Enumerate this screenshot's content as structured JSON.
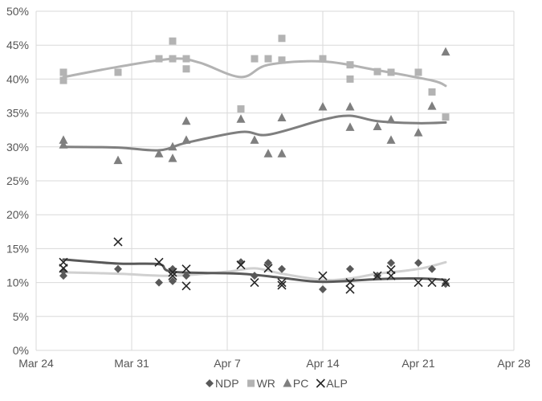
{
  "chart_data": {
    "type": "scatter",
    "x_axis": {
      "min": "2016-03-24",
      "max": "2016-04-28",
      "ticks": [
        "Mar 24",
        "Mar 31",
        "Apr 7",
        "Apr 14",
        "Apr 21",
        "Apr 28"
      ]
    },
    "y_axis": {
      "min": 0,
      "max": 50,
      "ticks": [
        "0%",
        "5%",
        "10%",
        "15%",
        "20%",
        "25%",
        "30%",
        "35%",
        "40%",
        "45%",
        "50%"
      ]
    },
    "grid": true,
    "legend_position": "bottom",
    "series": [
      {
        "name": "NDP",
        "marker": "diamond",
        "color": "#595959",
        "points": [
          [
            "2016-03-26",
            11.0
          ],
          [
            "2016-03-26",
            11.7
          ],
          [
            "2016-03-30",
            12.0
          ],
          [
            "2016-04-02",
            10.0
          ],
          [
            "2016-04-03",
            10.2
          ],
          [
            "2016-04-03",
            12.0
          ],
          [
            "2016-04-04",
            11.0
          ],
          [
            "2016-04-08",
            13.0
          ],
          [
            "2016-04-09",
            11.0
          ],
          [
            "2016-04-10",
            12.9
          ],
          [
            "2016-04-11",
            12.0
          ],
          [
            "2016-04-14",
            9.0
          ],
          [
            "2016-04-16",
            12.0
          ],
          [
            "2016-04-18",
            11.0
          ],
          [
            "2016-04-19",
            12.9
          ],
          [
            "2016-04-21",
            12.9
          ],
          [
            "2016-04-22",
            12.0
          ],
          [
            "2016-04-23",
            9.8
          ]
        ]
      },
      {
        "name": "WR",
        "marker": "square",
        "color": "#b3b3b3",
        "points": [
          [
            "2016-03-26",
            41.0
          ],
          [
            "2016-03-26",
            39.8
          ],
          [
            "2016-03-30",
            41.0
          ],
          [
            "2016-04-02",
            43.0
          ],
          [
            "2016-04-03",
            45.6
          ],
          [
            "2016-04-03",
            43.0
          ],
          [
            "2016-04-04",
            43.0
          ],
          [
            "2016-04-04",
            41.5
          ],
          [
            "2016-04-08",
            35.6
          ],
          [
            "2016-04-09",
            43.0
          ],
          [
            "2016-04-10",
            43.0
          ],
          [
            "2016-04-11",
            46.0
          ],
          [
            "2016-04-11",
            42.8
          ],
          [
            "2016-04-14",
            43.0
          ],
          [
            "2016-04-16",
            42.1
          ],
          [
            "2016-04-16",
            40.0
          ],
          [
            "2016-04-18",
            41.1
          ],
          [
            "2016-04-19",
            41.0
          ],
          [
            "2016-04-21",
            41.0
          ],
          [
            "2016-04-22",
            38.1
          ],
          [
            "2016-04-23",
            34.4
          ]
        ]
      },
      {
        "name": "PC",
        "marker": "triangle",
        "color": "#7f7f7f",
        "points": [
          [
            "2016-03-26",
            31.0
          ],
          [
            "2016-03-26",
            30.3
          ],
          [
            "2016-03-30",
            28.0
          ],
          [
            "2016-04-02",
            29.0
          ],
          [
            "2016-04-03",
            28.3
          ],
          [
            "2016-04-03",
            30.0
          ],
          [
            "2016-04-04",
            31.0
          ],
          [
            "2016-04-04",
            33.8
          ],
          [
            "2016-04-08",
            34.1
          ],
          [
            "2016-04-09",
            31.0
          ],
          [
            "2016-04-10",
            29.0
          ],
          [
            "2016-04-11",
            29.0
          ],
          [
            "2016-04-11",
            34.3
          ],
          [
            "2016-04-14",
            35.9
          ],
          [
            "2016-04-16",
            35.9
          ],
          [
            "2016-04-16",
            32.9
          ],
          [
            "2016-04-18",
            33.0
          ],
          [
            "2016-04-19",
            31.0
          ],
          [
            "2016-04-19",
            34.0
          ],
          [
            "2016-04-21",
            32.1
          ],
          [
            "2016-04-22",
            36.0
          ],
          [
            "2016-04-23",
            44.0
          ]
        ]
      },
      {
        "name": "ALP",
        "marker": "x",
        "color": "#262626",
        "points": [
          [
            "2016-03-26",
            13.0
          ],
          [
            "2016-03-26",
            12.1
          ],
          [
            "2016-03-30",
            16.0
          ],
          [
            "2016-04-02",
            13.0
          ],
          [
            "2016-04-03",
            11.5
          ],
          [
            "2016-04-03",
            11.0
          ],
          [
            "2016-04-04",
            12.0
          ],
          [
            "2016-04-04",
            9.5
          ],
          [
            "2016-04-08",
            12.6
          ],
          [
            "2016-04-09",
            10.0
          ],
          [
            "2016-04-10",
            12.1
          ],
          [
            "2016-04-11",
            10.0
          ],
          [
            "2016-04-11",
            9.6
          ],
          [
            "2016-04-14",
            11.0
          ],
          [
            "2016-04-16",
            10.0
          ],
          [
            "2016-04-16",
            9.0
          ],
          [
            "2016-04-18",
            11.0
          ],
          [
            "2016-04-19",
            11.0
          ],
          [
            "2016-04-19",
            11.9
          ],
          [
            "2016-04-21",
            10.0
          ],
          [
            "2016-04-22",
            10.0
          ],
          [
            "2016-04-23",
            10.0
          ]
        ]
      }
    ],
    "trend_lines": [
      {
        "series": "WR",
        "color": "#b3b3b3",
        "points": [
          [
            "2016-03-26",
            40.3
          ],
          [
            "2016-03-30",
            41.8
          ],
          [
            "2016-04-03",
            43.0
          ],
          [
            "2016-04-05",
            42.4
          ],
          [
            "2016-04-08",
            40.3
          ],
          [
            "2016-04-10",
            42.1
          ],
          [
            "2016-04-14",
            42.6
          ],
          [
            "2016-04-18",
            41.3
          ],
          [
            "2016-04-22",
            39.8
          ],
          [
            "2016-04-23",
            39.0
          ]
        ]
      },
      {
        "series": "PC",
        "color": "#7f7f7f",
        "points": [
          [
            "2016-03-26",
            30.0
          ],
          [
            "2016-03-30",
            29.9
          ],
          [
            "2016-04-02",
            29.5
          ],
          [
            "2016-04-04",
            30.6
          ],
          [
            "2016-04-08",
            32.2
          ],
          [
            "2016-04-10",
            31.8
          ],
          [
            "2016-04-14",
            34.0
          ],
          [
            "2016-04-16",
            34.6
          ],
          [
            "2016-04-18",
            33.8
          ],
          [
            "2016-04-21",
            33.5
          ],
          [
            "2016-04-23",
            33.6
          ]
        ]
      },
      {
        "series": "NDP",
        "color": "#d0d0d0",
        "points": [
          [
            "2016-03-26",
            11.5
          ],
          [
            "2016-03-30",
            11.3
          ],
          [
            "2016-04-03",
            11.0
          ],
          [
            "2016-04-07",
            11.6
          ],
          [
            "2016-04-09",
            12.1
          ],
          [
            "2016-04-11",
            11.3
          ],
          [
            "2016-04-14",
            10.4
          ],
          [
            "2016-04-16",
            10.6
          ],
          [
            "2016-04-18",
            11.3
          ],
          [
            "2016-04-21",
            12.0
          ],
          [
            "2016-04-23",
            13.0
          ]
        ]
      },
      {
        "series": "ALP",
        "color": "#595959",
        "points": [
          [
            "2016-03-26",
            13.4
          ],
          [
            "2016-03-30",
            12.8
          ],
          [
            "2016-04-02",
            12.7
          ],
          [
            "2016-04-03",
            11.6
          ],
          [
            "2016-04-08",
            11.3
          ],
          [
            "2016-04-11",
            10.7
          ],
          [
            "2016-04-14",
            10.1
          ],
          [
            "2016-04-18",
            10.5
          ],
          [
            "2016-04-21",
            10.6
          ],
          [
            "2016-04-23",
            10.4
          ]
        ]
      }
    ]
  }
}
